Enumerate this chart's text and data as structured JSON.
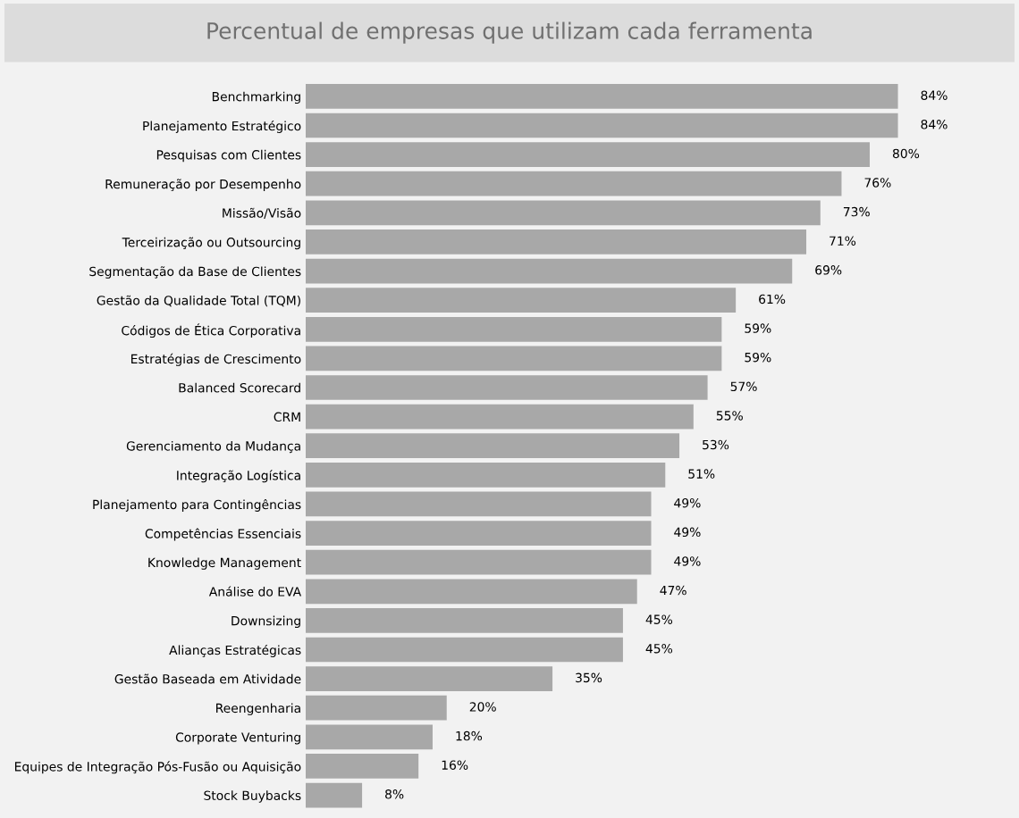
{
  "chart_data": {
    "type": "bar",
    "orientation": "horizontal",
    "title": "Percentual de empresas que utilizam cada ferramenta",
    "categories": [
      "Benchmarking",
      "Planejamento Estratégico",
      "Pesquisas com Clientes",
      "Remuneração por Desempenho",
      "Missão/Visão",
      "Terceirização ou Outsourcing",
      "Segmentação da Base de Clientes",
      "Gestão da Qualidade Total (TQM)",
      "Códigos de Ética Corporativa",
      "Estratégias de Crescimento",
      "Balanced Scorecard",
      "CRM",
      "Gerenciamento da Mudança",
      "Integração Logística",
      "Planejamento para Contingências",
      "Competências Essenciais",
      "Knowledge Management",
      "Análise do EVA",
      "Downsizing",
      "Alianças Estratégicas",
      "Gestão Baseada em Atividade",
      "Reengenharia",
      "Corporate Venturing",
      "Equipes de Integração Pós-Fusão ou Aquisição",
      "Stock Buybacks"
    ],
    "values": [
      84,
      84,
      80,
      76,
      73,
      71,
      69,
      61,
      59,
      59,
      57,
      55,
      53,
      51,
      49,
      49,
      49,
      47,
      45,
      45,
      35,
      20,
      18,
      16,
      8
    ],
    "value_labels": [
      "84%",
      "84%",
      "80%",
      "76%",
      "73%",
      "71%",
      "69%",
      "61%",
      "59%",
      "59%",
      "57%",
      "55%",
      "53%",
      "51%",
      "49%",
      "49%",
      "49%",
      "47%",
      "45%",
      "45%",
      "35%",
      "20%",
      "18%",
      "16%",
      "8%"
    ],
    "color": "#a8a8a8",
    "grid": false,
    "legend": false,
    "tick_labels": "y"
  }
}
